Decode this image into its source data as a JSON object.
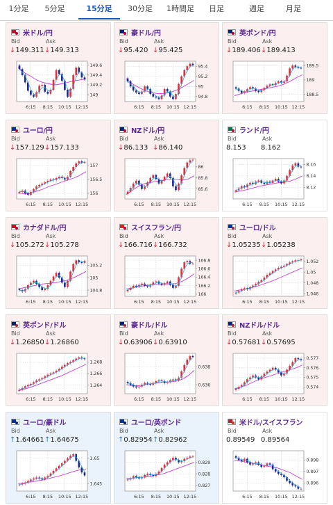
{
  "tabs": [
    "1分足",
    "5分足",
    "15分足",
    "30分足",
    "1時間足",
    "日足",
    "週足",
    "月足"
  ],
  "active_tab": 2,
  "x_ticks": [
    "6:15",
    "8:15",
    "10:15",
    "12:15"
  ],
  "colors": {
    "candle_up": "#d8323c",
    "candle_down": "#1b2a8c",
    "ma_short": "#3aa5e0",
    "ma_long": "#c040d0",
    "card_down": "#fbefef",
    "card_up": "#eaf3fb"
  },
  "labels": {
    "bid": "Bid",
    "ask": "Ask"
  },
  "pairs": [
    {
      "name": "米ドル/円",
      "icon": "us-jp-flag-icon",
      "flag": [
        "#c8102e",
        "#bc002d"
      ],
      "dir": "down",
      "bid": "149.311",
      "ask": "149.313",
      "chart_data": {
        "type": "candlestick",
        "y_ticks": [
          "149.6",
          "149.4",
          "149.2",
          "149"
        ],
        "ylim": [
          148.86,
          149.68
        ],
        "close": [
          149.52,
          149.4,
          149.25,
          149.08,
          149.0,
          148.96,
          149.05,
          149.18,
          149.2,
          149.06,
          149.02,
          149.1,
          149.3,
          149.5,
          149.42,
          149.28,
          149.1,
          148.96,
          149.12,
          149.4,
          149.55,
          149.45,
          149.35,
          149.31
        ],
        "ma_long": [
          149.55,
          149.45,
          149.38,
          149.3,
          149.25,
          149.22,
          149.2,
          149.22,
          149.25,
          149.28,
          149.3,
          149.32
        ]
      }
    },
    {
      "name": "豪ドル/円",
      "icon": "au-jp-flag-icon",
      "flag": [
        "#00247d",
        "#bc002d"
      ],
      "dir": "down",
      "bid": "95.420",
      "ask": "95.425",
      "chart_data": {
        "type": "candlestick",
        "y_ticks": [
          "95.4",
          "95.2",
          "95",
          "94.8"
        ],
        "ylim": [
          94.7,
          95.5
        ],
        "close": [
          95.1,
          95.0,
          94.92,
          94.88,
          94.85,
          94.9,
          95.0,
          94.95,
          94.85,
          94.8,
          94.78,
          94.75,
          94.82,
          94.95,
          94.9,
          94.8,
          94.75,
          94.85,
          95.05,
          95.2,
          95.32,
          95.4,
          95.45,
          95.42
        ],
        "ma_long": [
          95.15,
          95.05,
          94.98,
          94.92,
          94.88,
          94.86,
          94.86,
          94.88,
          94.92,
          94.98,
          95.05,
          95.12
        ]
      }
    },
    {
      "name": "英ポンド/円",
      "icon": "gb-jp-flag-icon",
      "flag": [
        "#012169",
        "#bc002d"
      ],
      "dir": "down",
      "bid": "189.406",
      "ask": "189.413",
      "chart_data": {
        "type": "candlestick",
        "y_ticks": [
          "189.5",
          "189",
          "188.5"
        ],
        "ylim": [
          188.25,
          189.65
        ],
        "close": [
          188.7,
          188.62,
          188.55,
          188.6,
          188.68,
          188.75,
          188.7,
          188.62,
          188.58,
          188.65,
          188.72,
          188.8,
          188.85,
          188.82,
          188.9,
          188.95,
          188.9,
          188.95,
          189.15,
          189.4,
          189.5,
          189.45,
          189.42,
          189.41
        ],
        "ma_long": [
          188.45,
          188.52,
          188.58,
          188.62,
          188.66,
          188.7,
          188.74,
          188.78,
          188.85,
          188.95,
          189.08,
          189.18
        ]
      }
    },
    {
      "name": "ユーロ/円",
      "icon": "eu-jp-flag-icon",
      "flag": [
        "#003399",
        "#bc002d"
      ],
      "dir": "down",
      "bid": "157.129",
      "ask": "157.133",
      "chart_data": {
        "type": "candlestick",
        "y_ticks": [
          "157",
          "156.5",
          "156"
        ],
        "ylim": [
          155.8,
          157.25
        ],
        "close": [
          156.05,
          156.1,
          156.0,
          155.95,
          156.05,
          156.15,
          156.25,
          156.3,
          156.35,
          156.4,
          156.45,
          156.5,
          156.48,
          156.55,
          156.6,
          156.55,
          156.5,
          156.6,
          156.8,
          156.95,
          157.08,
          157.15,
          157.1,
          157.13
        ],
        "ma_long": [
          156.02,
          155.98,
          156.0,
          156.08,
          156.15,
          156.25,
          156.32,
          156.4,
          156.48,
          156.55,
          156.65,
          156.78
        ]
      }
    },
    {
      "name": "NZドル/円",
      "icon": "nz-jp-flag-icon",
      "flag": [
        "#00247d",
        "#bc002d"
      ],
      "dir": "down",
      "bid": "86.133",
      "ask": "86.140",
      "chart_data": {
        "type": "candlestick",
        "y_ticks": [
          "86",
          "85.8",
          "85.6"
        ],
        "ylim": [
          85.42,
          86.15
        ],
        "close": [
          85.55,
          85.62,
          85.7,
          85.75,
          85.68,
          85.6,
          85.65,
          85.72,
          85.8,
          85.85,
          85.78,
          85.7,
          85.75,
          85.82,
          85.88,
          85.8,
          85.65,
          85.58,
          85.7,
          85.85,
          85.98,
          86.08,
          86.12,
          86.13
        ],
        "ma_long": [
          85.5,
          85.58,
          85.65,
          85.7,
          85.72,
          85.74,
          85.76,
          85.78,
          85.78,
          85.76,
          85.78,
          85.84
        ]
      }
    },
    {
      "name": "ランド/円",
      "icon": "za-jp-flag-icon",
      "flag": [
        "#007a4d",
        "#bc002d"
      ],
      "dir": "flat",
      "bid": "8.153",
      "ask": "8.162",
      "chart_data": {
        "type": "candlestick",
        "y_ticks": [
          "8.16",
          "8.14",
          "8.12"
        ],
        "ylim": [
          8.1,
          8.17
        ],
        "close": [
          8.115,
          8.118,
          8.122,
          8.12,
          8.125,
          8.128,
          8.126,
          8.13,
          8.132,
          8.128,
          8.126,
          8.13,
          8.128,
          8.132,
          8.135,
          8.13,
          8.127,
          8.132,
          8.14,
          8.15,
          8.158,
          8.162,
          8.156,
          8.155
        ],
        "ma_long": [
          8.112,
          8.114,
          8.116,
          8.119,
          8.122,
          8.124,
          8.126,
          8.128,
          8.129,
          8.131,
          8.135,
          8.14
        ]
      }
    },
    {
      "name": "カナダドル/円",
      "icon": "ca-jp-flag-icon",
      "flag": [
        "#d80621",
        "#bc002d"
      ],
      "dir": "down",
      "bid": "105.272",
      "ask": "105.278",
      "chart_data": {
        "type": "candlestick",
        "y_ticks": [
          "105.2",
          "105",
          "104.8"
        ],
        "ylim": [
          104.7,
          105.35
        ],
        "close": [
          104.8,
          104.78,
          104.82,
          104.88,
          104.92,
          104.95,
          104.9,
          104.85,
          104.8,
          104.82,
          104.88,
          104.95,
          105.02,
          105.08,
          105.0,
          104.92,
          104.85,
          104.95,
          105.1,
          105.22,
          105.28,
          105.25,
          105.24,
          105.27
        ],
        "ma_long": [
          104.82,
          104.84,
          104.86,
          104.88,
          104.9,
          104.91,
          104.92,
          104.94,
          104.96,
          105.0,
          105.05,
          105.1
        ]
      }
    },
    {
      "name": "スイスフラン/円",
      "icon": "ch-jp-flag-icon",
      "flag": [
        "#d52b1e",
        "#bc002d"
      ],
      "dir": "down",
      "bid": "166.716",
      "ask": "166.732",
      "chart_data": {
        "type": "candlestick",
        "y_ticks": [
          "166.8",
          "166.6",
          "166.4",
          "166.2",
          "166"
        ],
        "ylim": [
          165.95,
          166.9
        ],
        "close": [
          166.1,
          166.15,
          166.2,
          166.18,
          166.22,
          166.25,
          166.2,
          166.18,
          166.22,
          166.28,
          166.3,
          166.25,
          166.22,
          166.26,
          166.3,
          166.22,
          166.15,
          166.2,
          166.4,
          166.6,
          166.75,
          166.78,
          166.72,
          166.72
        ],
        "ma_long": [
          166.12,
          166.15,
          166.18,
          166.2,
          166.22,
          166.23,
          166.24,
          166.24,
          166.25,
          166.3,
          166.38,
          166.48
        ]
      }
    },
    {
      "name": "ユーロ/ドル",
      "icon": "eu-us-flag-icon",
      "flag": [
        "#003399",
        "#b22234"
      ],
      "dir": "down",
      "bid": "1.05235",
      "ask": "1.05238",
      "chart_data": {
        "type": "candlestick",
        "y_ticks": [
          "1.052",
          "1.05",
          "1.048",
          "1.046"
        ],
        "ylim": [
          1.0455,
          1.053
        ],
        "close": [
          1.0462,
          1.0465,
          1.0468,
          1.047,
          1.0468,
          1.0472,
          1.0475,
          1.0478,
          1.0482,
          1.0485,
          1.049,
          1.0495,
          1.0498,
          1.0502,
          1.0505,
          1.0508,
          1.051,
          1.0512,
          1.0515,
          1.0518,
          1.052,
          1.0522,
          1.0522,
          1.0524
        ],
        "ma_long": [
          1.0465,
          1.0467,
          1.0469,
          1.0472,
          1.0475,
          1.0479,
          1.0483,
          1.0488,
          1.0493,
          1.0498,
          1.0503,
          1.0508
        ]
      }
    },
    {
      "name": "英ポンド/ドル",
      "icon": "gb-us-flag-icon",
      "flag": [
        "#012169",
        "#b22234"
      ],
      "dir": "down",
      "bid": "1.26850",
      "ask": "1.26860",
      "chart_data": {
        "type": "candlestick",
        "y_ticks": [
          "1.268",
          "1.266",
          "1.264"
        ],
        "ylim": [
          1.2625,
          1.2695
        ],
        "close": [
          1.2632,
          1.2635,
          1.2638,
          1.264,
          1.2642,
          1.2645,
          1.2648,
          1.265,
          1.2652,
          1.2655,
          1.2658,
          1.266,
          1.2662,
          1.2665,
          1.2668,
          1.2672,
          1.2675,
          1.2678,
          1.268,
          1.2683,
          1.2686,
          1.2688,
          1.2686,
          1.2685
        ],
        "ma_long": [
          1.263,
          1.2633,
          1.2636,
          1.264,
          1.2644,
          1.2648,
          1.2652,
          1.2656,
          1.2661,
          1.2666,
          1.2671,
          1.2676
        ]
      }
    },
    {
      "name": "豪ドル/ドル",
      "icon": "au-us-flag-icon",
      "flag": [
        "#00247d",
        "#b22234"
      ],
      "dir": "down",
      "bid": "0.63906",
      "ask": "0.63910",
      "chart_data": {
        "type": "candlestick",
        "y_ticks": [
          "0.638",
          "0.636"
        ],
        "ylim": [
          0.635,
          0.6395
        ],
        "close": [
          0.6362,
          0.636,
          0.6358,
          0.6357,
          0.6358,
          0.636,
          0.6362,
          0.6361,
          0.636,
          0.6362,
          0.6364,
          0.6365,
          0.6364,
          0.6362,
          0.6363,
          0.6365,
          0.6366,
          0.6365,
          0.6368,
          0.6375,
          0.6382,
          0.6388,
          0.6392,
          0.6391
        ],
        "ma_long": [
          0.636,
          0.6359,
          0.6359,
          0.636,
          0.6361,
          0.6362,
          0.6363,
          0.6363,
          0.6364,
          0.6366,
          0.637,
          0.6376
        ]
      }
    },
    {
      "name": "NZドル/ドル",
      "icon": "nz-us-flag-icon",
      "flag": [
        "#00247d",
        "#b22234"
      ],
      "dir": "down",
      "bid": "0.57681",
      "ask": "0.57695",
      "chart_data": {
        "type": "candlestick",
        "y_ticks": [
          "0.577",
          "0.576",
          "0.575",
          "0.574"
        ],
        "ylim": [
          0.5733,
          0.5775
        ],
        "close": [
          0.5738,
          0.574,
          0.5742,
          0.5745,
          0.5748,
          0.575,
          0.5752,
          0.575,
          0.5748,
          0.5751,
          0.5754,
          0.5756,
          0.5758,
          0.576,
          0.5758,
          0.5755,
          0.5752,
          0.5754,
          0.5758,
          0.5762,
          0.5766,
          0.577,
          0.5769,
          0.5768
        ],
        "ma_long": [
          0.5738,
          0.574,
          0.5742,
          0.5745,
          0.5748,
          0.575,
          0.5752,
          0.5754,
          0.5756,
          0.5758,
          0.576,
          0.5763
        ]
      }
    },
    {
      "name": "ユーロ/豪ドル",
      "icon": "eu-au-flag-icon",
      "flag": [
        "#003399",
        "#00247d"
      ],
      "dir": "up",
      "bid": "1.64661",
      "ask": "1.64675",
      "chart_data": {
        "type": "candlestick",
        "y_ticks": [
          "1.65",
          "1.645"
        ],
        "ylim": [
          1.6435,
          1.6515
        ],
        "close": [
          1.6448,
          1.645,
          1.6452,
          1.6455,
          1.6458,
          1.646,
          1.6462,
          1.646,
          1.6458,
          1.6462,
          1.6465,
          1.647,
          1.6475,
          1.648,
          1.6485,
          1.649,
          1.6495,
          1.65,
          1.6505,
          1.6508,
          1.6495,
          1.6482,
          1.6472,
          1.6466
        ],
        "ma_long": [
          1.645,
          1.6451,
          1.6453,
          1.6455,
          1.6457,
          1.646,
          1.6463,
          1.6466,
          1.647,
          1.6474,
          1.6477,
          1.6478
        ]
      }
    },
    {
      "name": "ユーロ/英ポンド",
      "icon": "eu-gb-flag-icon",
      "flag": [
        "#003399",
        "#012169"
      ],
      "dir": "up",
      "bid": "0.82954",
      "ask": "0.82962",
      "chart_data": {
        "type": "candlestick",
        "y_ticks": [
          "0.829",
          "0.828",
          "0.827"
        ],
        "ylim": [
          0.8265,
          0.83
        ],
        "close": [
          0.8275,
          0.8276,
          0.8278,
          0.8277,
          0.8276,
          0.8277,
          0.8279,
          0.828,
          0.8279,
          0.8278,
          0.828,
          0.8282,
          0.8285,
          0.8288,
          0.829,
          0.8292,
          0.8294,
          0.8292,
          0.829,
          0.8291,
          0.8293,
          0.8294,
          0.8295,
          0.8295
        ],
        "ma_long": [
          0.8276,
          0.8276,
          0.8277,
          0.8277,
          0.8278,
          0.8279,
          0.828,
          0.8282,
          0.8284,
          0.8286,
          0.8288,
          0.829
        ]
      }
    },
    {
      "name": "米ドル/スイスフラン",
      "icon": "us-ch-flag-icon",
      "flag": [
        "#b22234",
        "#d52b1e"
      ],
      "dir": "flat",
      "bid": "0.89549",
      "ask": "0.89564",
      "chart_data": {
        "type": "candlestick",
        "y_ticks": [
          "0.898",
          "0.897",
          "0.896"
        ],
        "ylim": [
          0.8953,
          0.8988
        ],
        "close": [
          0.8982,
          0.898,
          0.8979,
          0.8981,
          0.8978,
          0.8976,
          0.8977,
          0.8978,
          0.8976,
          0.8974,
          0.8975,
          0.8977,
          0.8976,
          0.8972,
          0.897,
          0.8968,
          0.8967,
          0.8965,
          0.8962,
          0.896,
          0.8958,
          0.8957,
          0.8955,
          0.8955
        ],
        "ma_long": [
          0.898,
          0.8979,
          0.8978,
          0.8977,
          0.8976,
          0.8975,
          0.8974,
          0.8973,
          0.8971,
          0.8969,
          0.8966,
          0.8963
        ]
      }
    }
  ]
}
